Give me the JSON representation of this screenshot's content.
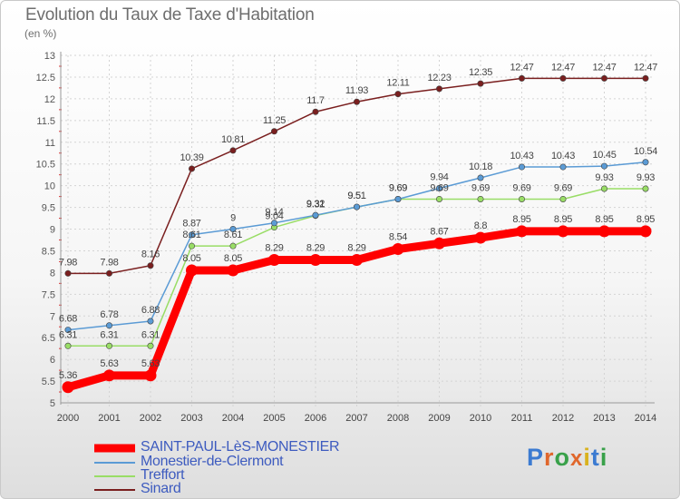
{
  "title": "Evolution du Taux de Taxe d'Habitation",
  "unit_label": "(en %)",
  "brand": {
    "letters": [
      "P",
      "r",
      "o",
      "x",
      "i",
      "t",
      "i"
    ],
    "letter_colors": [
      "#3c7bd1",
      "#e0672c",
      "#39a14a",
      "#e0672c",
      "#d9b21e",
      "#3c7bd1",
      "#39a14a"
    ]
  },
  "chart_data": {
    "type": "line",
    "x": [
      "2000",
      "2001",
      "2002",
      "2003",
      "2004",
      "2005",
      "2006",
      "2007",
      "2008",
      "2009",
      "2010",
      "2011",
      "2012",
      "2013",
      "2014"
    ],
    "ylim": [
      5,
      13
    ],
    "yticks": [
      "5",
      "5.5",
      "6",
      "6.5",
      "7",
      "7.5",
      "8",
      "8.5",
      "9",
      "9.5",
      "10",
      "10.5",
      "11",
      "11.5",
      "12",
      "12.5",
      "13"
    ],
    "grid": true,
    "series": [
      {
        "name": "SAINT-PAUL-LèS-MONESTIER",
        "color": "#ff0000",
        "values": [
          5.36,
          5.63,
          5.63,
          8.05,
          8.05,
          8.29,
          8.29,
          8.29,
          8.54,
          8.67,
          8.8,
          8.95,
          8.95,
          8.95,
          8.95
        ]
      },
      {
        "name": "Monestier-de-Clermont",
        "color": "#5b9bd5",
        "values": [
          6.68,
          6.78,
          6.88,
          8.87,
          9.0,
          9.14,
          9.32,
          9.51,
          9.69,
          9.94,
          10.18,
          10.43,
          10.43,
          10.45,
          10.54
        ]
      },
      {
        "name": "Treffort",
        "color": "#99dd66",
        "values": [
          6.31,
          6.31,
          6.31,
          8.61,
          8.61,
          9.04,
          9.31,
          9.51,
          9.69,
          9.69,
          9.69,
          9.69,
          9.69,
          9.93,
          9.93
        ]
      },
      {
        "name": "Sinard",
        "color": "#7a1f1f",
        "values": [
          7.98,
          7.98,
          8.16,
          10.39,
          10.81,
          11.25,
          11.7,
          11.93,
          12.11,
          12.23,
          12.35,
          12.47,
          12.47,
          12.47,
          12.47
        ]
      }
    ],
    "data_labels": [
      [
        "5.36",
        "5.63",
        "5.63",
        "8.05",
        "8.05",
        "8.29",
        "8.29",
        "8.29",
        "8.54",
        "8.67",
        "8.8",
        "8.95",
        "8.95",
        "8.95",
        "8.95"
      ],
      [
        "6.68",
        "6.78",
        "6.88",
        "8.87",
        "9",
        "9.14",
        "9.32",
        "9.51",
        "9.69",
        "9.94",
        "10.18",
        "10.43",
        "10.43",
        "10.45",
        "10.54"
      ],
      [
        "6.31",
        "6.31",
        "6.31",
        "8.61",
        "8.61",
        "9.04",
        "9.31",
        "9.51",
        "9.69",
        "9.69",
        "9.69",
        "9.69",
        "9.69",
        "9.93",
        "9.93"
      ],
      [
        "7.98",
        "7.98",
        "8.16",
        "10.39",
        "10.81",
        "11.25",
        "11.7",
        "11.93",
        "12.11",
        "12.23",
        "12.35",
        "12.47",
        "12.47",
        "12.47",
        "12.47"
      ]
    ],
    "legend_position": "bottom-left"
  }
}
